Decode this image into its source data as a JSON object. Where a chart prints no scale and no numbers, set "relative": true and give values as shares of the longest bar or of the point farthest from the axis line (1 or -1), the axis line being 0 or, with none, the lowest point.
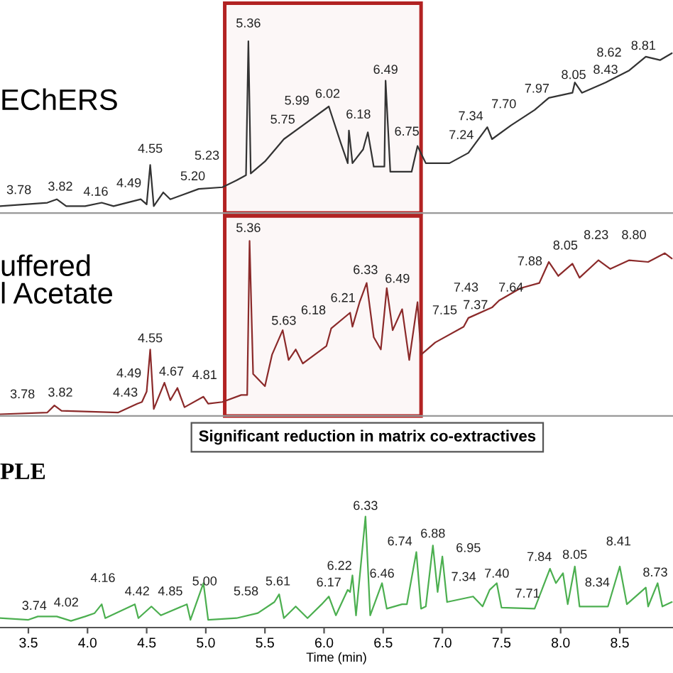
{
  "chart_data": [
    {
      "type": "line",
      "relative": true,
      "xlim": [
        3.26,
        8.95
      ],
      "tick_labels": false,
      "grid": false,
      "x": [
        3.26,
        3.66,
        3.74,
        3.82,
        3.98,
        4.12,
        4.22,
        4.45,
        4.5,
        4.53,
        4.56,
        4.64,
        4.7,
        4.94,
        5.14,
        5.26,
        5.34,
        5.36,
        5.38,
        5.5,
        5.66,
        5.82,
        6.04,
        6.14,
        6.2,
        6.21,
        6.24,
        6.33,
        6.37,
        6.42,
        6.51,
        6.52,
        6.56,
        6.74,
        6.79,
        6.86,
        7.06,
        7.22,
        7.38,
        7.42,
        7.58,
        7.78,
        7.9,
        8.1,
        8.12,
        8.18,
        8.38,
        8.58,
        8.72,
        8.84,
        8.94
      ],
      "series": [
        {
          "color": "#333333",
          "values": [
            0.04,
            0.06,
            0.08,
            0.04,
            0.04,
            0.06,
            0.04,
            0.08,
            0.05,
            0.28,
            0.04,
            0.12,
            0.08,
            0.14,
            0.15,
            0.19,
            0.22,
            1.0,
            0.23,
            0.3,
            0.43,
            0.51,
            0.62,
            0.41,
            0.29,
            0.48,
            0.29,
            0.37,
            0.47,
            0.27,
            0.27,
            0.77,
            0.24,
            0.24,
            0.39,
            0.29,
            0.29,
            0.35,
            0.5,
            0.43,
            0.51,
            0.6,
            0.67,
            0.7,
            0.76,
            0.7,
            0.76,
            0.83,
            0.91,
            0.89,
            0.93
          ]
        }
      ],
      "bands": [
        {
          "axis": "x",
          "from": 5.16,
          "to": 6.82,
          "color": "#b22222"
        }
      ],
      "annotations": [
        "EChERS",
        "3.78",
        "3.82",
        "4.16",
        "4.49",
        "4.55",
        "5.20",
        "5.23",
        "5.36",
        "5.75",
        "5.99",
        "6.02",
        "6.18",
        "6.49",
        "6.75",
        "7.24",
        "7.34",
        "7.70",
        "7.97",
        "8.05",
        "8.43",
        "8.62",
        "8.81"
      ]
    },
    {
      "type": "line",
      "relative": true,
      "xlim": [
        3.26,
        8.95
      ],
      "tick_labels": false,
      "grid": false,
      "x": [
        3.26,
        3.66,
        3.72,
        3.78,
        4.26,
        4.42,
        4.46,
        4.5,
        4.53,
        4.56,
        4.65,
        4.7,
        4.76,
        4.82,
        4.98,
        5.02,
        5.14,
        5.3,
        5.35,
        5.37,
        5.4,
        5.5,
        5.56,
        5.65,
        5.7,
        5.76,
        5.82,
        6.02,
        6.06,
        6.22,
        6.24,
        6.3,
        6.36,
        6.42,
        6.48,
        6.53,
        6.58,
        6.66,
        6.72,
        6.79,
        6.82,
        6.94,
        7.18,
        7.22,
        7.42,
        7.48,
        7.66,
        7.82,
        7.9,
        7.98,
        8.1,
        8.16,
        8.32,
        8.42,
        8.58,
        8.74,
        8.88,
        8.94
      ],
      "series": [
        {
          "color": "#8b2a2a",
          "values": [
            0.01,
            0.02,
            0.06,
            0.03,
            0.02,
            0.07,
            0.08,
            0.14,
            0.38,
            0.04,
            0.19,
            0.09,
            0.16,
            0.05,
            0.11,
            0.07,
            0.08,
            0.12,
            0.12,
            1.0,
            0.24,
            0.17,
            0.35,
            0.49,
            0.32,
            0.38,
            0.3,
            0.4,
            0.5,
            0.59,
            0.51,
            0.65,
            0.76,
            0.45,
            0.38,
            0.73,
            0.49,
            0.61,
            0.32,
            0.65,
            0.35,
            0.42,
            0.51,
            0.56,
            0.62,
            0.66,
            0.73,
            0.76,
            0.88,
            0.8,
            0.87,
            0.79,
            0.89,
            0.84,
            0.89,
            0.88,
            0.93,
            0.9
          ]
        }
      ],
      "bands": [
        {
          "axis": "x",
          "from": 5.16,
          "to": 6.82,
          "color": "#b22222"
        }
      ],
      "annotations": [
        "uffered\nl Acetate",
        "Significant reduction in matrix co-extractives",
        "3.78",
        "3.82",
        "4.43",
        "4.49",
        "4.55",
        "4.67",
        "4.81",
        "5.36",
        "5.63",
        "6.18",
        "6.21",
        "6.33",
        "6.49",
        "7.15",
        "7.37",
        "7.43",
        "7.64",
        "7.88",
        "8.05",
        "8.23",
        "8.80"
      ]
    },
    {
      "type": "line",
      "relative": true,
      "xlim": [
        3.26,
        8.95
      ],
      "tick_labels": "x",
      "grid": false,
      "xlabel": "Time (min)",
      "xticks": [
        3.5,
        {
          "value": 4,
          "label": "4.0"
        },
        4.5,
        {
          "value": 5,
          "label": "5.0"
        },
        5.5,
        {
          "value": 6,
          "label": "6.0"
        },
        6.5,
        {
          "value": 7,
          "label": "7.0"
        },
        7.5,
        {
          "value": 8,
          "label": "8.0"
        },
        8.5
      ],
      "x": [
        3.26,
        3.5,
        3.58,
        3.74,
        3.86,
        3.98,
        4.06,
        4.12,
        4.15,
        4.4,
        4.43,
        4.54,
        4.62,
        4.84,
        4.87,
        4.98,
        5.02,
        5.26,
        5.44,
        5.58,
        5.62,
        5.66,
        5.76,
        5.86,
        5.98,
        6.04,
        6.1,
        6.2,
        6.22,
        6.24,
        6.27,
        6.35,
        6.39,
        6.49,
        6.53,
        6.66,
        6.7,
        6.78,
        6.82,
        6.86,
        6.92,
        6.96,
        7.0,
        7.04,
        7.26,
        7.34,
        7.4,
        7.46,
        7.5,
        7.78,
        7.91,
        7.96,
        8.02,
        8.06,
        8.12,
        8.16,
        8.4,
        8.5,
        8.56,
        8.72,
        8.74,
        8.82,
        8.86,
        8.94
      ],
      "series": [
        {
          "color": "#4caf50",
          "values": [
            0.085,
            0.07,
            0.1,
            0.1,
            0.06,
            0.1,
            0.13,
            0.21,
            0.085,
            0.21,
            0.085,
            0.19,
            0.11,
            0.21,
            0.07,
            0.4,
            0.07,
            0.085,
            0.13,
            0.23,
            0.3,
            0.085,
            0.19,
            0.085,
            0.21,
            0.28,
            0.11,
            0.34,
            0.32,
            0.47,
            0.11,
            1.0,
            0.11,
            0.4,
            0.17,
            0.21,
            0.21,
            0.68,
            0.17,
            0.19,
            0.74,
            0.32,
            0.64,
            0.23,
            0.28,
            0.19,
            0.34,
            0.4,
            0.18,
            0.17,
            0.53,
            0.4,
            0.49,
            0.21,
            0.55,
            0.19,
            0.19,
            0.55,
            0.21,
            0.36,
            0.19,
            0.4,
            0.19,
            0.23
          ]
        }
      ],
      "annotations": [
        "PLE",
        "3.74",
        "4.02",
        "4.16",
        "4.42",
        "4.85",
        "5.00",
        "5.58",
        "5.61",
        "6.17",
        "6.22",
        "6.33",
        "6.46",
        "6.74",
        "6.88",
        "6.95",
        "7.34",
        "7.40",
        "7.71",
        "7.84",
        "8.05",
        "8.34",
        "8.41",
        "8.73"
      ]
    }
  ]
}
